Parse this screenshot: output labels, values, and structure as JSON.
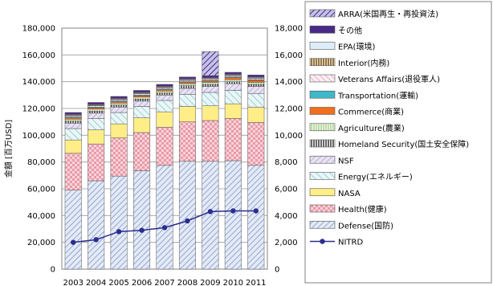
{
  "chart_data": {
    "type": "bar",
    "stacked": true,
    "categories": [
      "2003",
      "2004",
      "2005",
      "2006",
      "2007",
      "2008",
      "2009",
      "2010",
      "2011"
    ],
    "ylabel": "金額 [百万USD]",
    "ylim": [
      0,
      180000
    ],
    "yticks": [
      "0",
      "20,000",
      "40,000",
      "60,000",
      "80,000",
      "100,000",
      "120,000",
      "140,000",
      "160,000",
      "180,000"
    ],
    "y2lim": [
      0,
      18000
    ],
    "y2ticks": [
      "0",
      "2,000",
      "4,000",
      "6,000",
      "8,000",
      "10,000",
      "12,000",
      "14,000",
      "16,000",
      "18,000"
    ],
    "grid": true,
    "legend_position": "right",
    "series": [
      {
        "name": "Defense(国防)",
        "color": "#c9d4ea",
        "pattern": "diag-blue",
        "values": [
          59000,
          66000,
          69500,
          73500,
          77500,
          80500,
          80500,
          81000,
          77500
        ]
      },
      {
        "name": "Health(健康)",
        "color": "#f2c7cf",
        "pattern": "dots-pink",
        "values": [
          27500,
          27500,
          28500,
          28500,
          28500,
          29500,
          30500,
          31500,
          32000
        ]
      },
      {
        "name": "NASA",
        "color": "#ffee88",
        "pattern": "solid",
        "values": [
          10000,
          10500,
          10500,
          11000,
          11500,
          11500,
          11000,
          11000,
          11500
        ]
      },
      {
        "name": "Energy(エネルギー)",
        "color": "#d6eef0",
        "pattern": "diag-teal",
        "values": [
          8500,
          8500,
          8500,
          8500,
          8500,
          9000,
          10000,
          10000,
          10000
        ]
      },
      {
        "name": "NSF",
        "color": "#e0dcef",
        "pattern": "hatch-purple",
        "values": [
          4000,
          4000,
          4000,
          4000,
          4000,
          4500,
          4500,
          5000,
          5500
        ]
      },
      {
        "name": "Homeland Security(国土安全保障)",
        "color": "#ffffff",
        "pattern": "grid-black",
        "values": [
          1500,
          1500,
          1500,
          1500,
          1500,
          2000,
          1500,
          1500,
          1500
        ]
      },
      {
        "name": "Agriculture(農業)",
        "color": "#e8f3dc",
        "pattern": "vlines-green",
        "values": [
          1500,
          1500,
          1500,
          1500,
          1500,
          1500,
          1500,
          1500,
          1500
        ]
      },
      {
        "name": "Commerce(商業)",
        "color": "#f07020",
        "pattern": "solid",
        "values": [
          1000,
          1000,
          1000,
          1000,
          1000,
          1000,
          1000,
          1500,
          1500
        ]
      },
      {
        "name": "Transportation(運輸)",
        "color": "#40b8c8",
        "pattern": "solid",
        "values": [
          500,
          500,
          500,
          500,
          500,
          500,
          500,
          500,
          500
        ]
      },
      {
        "name": "Veterans Affairs(退役軍人)",
        "color": "#f5dde6",
        "pattern": "diag-pink",
        "values": [
          1000,
          1000,
          1000,
          1000,
          1000,
          1000,
          1000,
          1000,
          1000
        ]
      },
      {
        "name": "Interior(内務)",
        "color": "#f7e3a8",
        "pattern": "vlines-dark",
        "values": [
          500,
          500,
          500,
          500,
          500,
          500,
          500,
          500,
          500
        ]
      },
      {
        "name": "EPA(環境)",
        "color": "#ddeef8",
        "pattern": "solid",
        "values": [
          500,
          500,
          500,
          500,
          500,
          500,
          500,
          500,
          500
        ]
      },
      {
        "name": "その他",
        "color": "#4a2a88",
        "pattern": "solid",
        "values": [
          1500,
          1500,
          1500,
          1500,
          1500,
          1500,
          1500,
          1500,
          1500
        ]
      },
      {
        "name": "ARRA(米国再生・再投資法)",
        "color": "#8878c8",
        "pattern": "diag-dark",
        "values": [
          0,
          0,
          0,
          0,
          0,
          0,
          18000,
          0,
          0
        ]
      }
    ],
    "line_series": {
      "name": "NITRD",
      "axis": "right",
      "color": "#2b2d8e",
      "values": [
        2000,
        2200,
        2800,
        2900,
        3100,
        3600,
        4300,
        4350,
        4350
      ]
    }
  }
}
